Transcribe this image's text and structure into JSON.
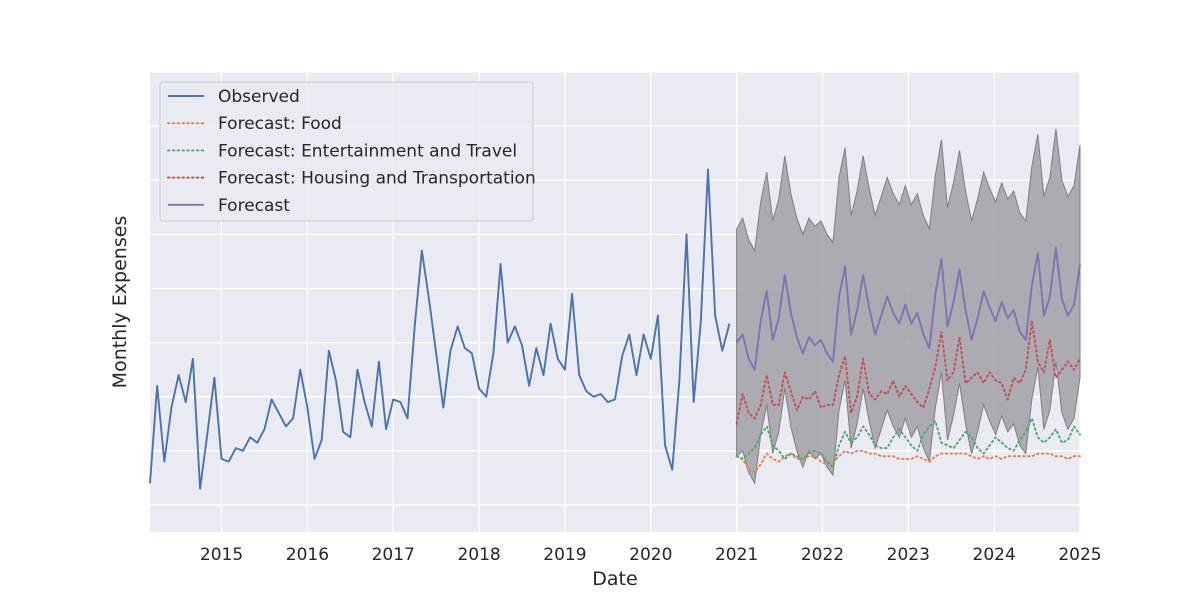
{
  "chart_data": {
    "type": "line",
    "title": "",
    "xlabel": "Date",
    "ylabel": "Monthly Expenses",
    "x_scale": "date",
    "x_ticks": [
      "2015",
      "2016",
      "2017",
      "2018",
      "2019",
      "2020",
      "2021",
      "2022",
      "2023",
      "2024",
      "2025"
    ],
    "xlim": [
      "2014-03",
      "2025-01"
    ],
    "ylim": [
      0,
      8.5
    ],
    "y_gridlines": [
      0.5,
      1.5,
      2.5,
      3.5,
      4.5,
      5.5,
      6.5,
      7.5,
      8.5
    ],
    "y_tick_labels_shown": false,
    "grid": true,
    "legend_position": "top-left",
    "colors": {
      "background": "#eaeaf2",
      "grid": "#ffffff",
      "observed": "#4c72b0",
      "food": "#dd8452",
      "entertainment": "#55a868",
      "housing": "#c44e52",
      "forecast": "#8172b3",
      "band": "#a0a0a6"
    },
    "legend": [
      {
        "label": "Observed",
        "series": "observed",
        "style": "solid"
      },
      {
        "label": "Forecast: Food",
        "series": "food",
        "style": "dotted"
      },
      {
        "label": "Forecast: Entertainment and Travel",
        "series": "entertainment",
        "style": "dotted"
      },
      {
        "label": "Forecast: Housing and Transportation",
        "series": "housing",
        "style": "dotted"
      },
      {
        "label": "Forecast",
        "series": "forecast",
        "style": "solid"
      }
    ],
    "observed": {
      "start": "2014-03",
      "values": [
        0.9,
        2.7,
        1.3,
        2.3,
        2.9,
        2.4,
        3.2,
        0.8,
        1.8,
        2.85,
        1.35,
        1.3,
        1.55,
        1.5,
        1.75,
        1.65,
        1.9,
        2.45,
        2.2,
        1.95,
        2.1,
        3.0,
        2.3,
        1.35,
        1.7,
        3.35,
        2.8,
        1.85,
        1.75,
        3.0,
        2.4,
        1.95,
        3.15,
        1.9,
        2.45,
        2.4,
        2.1,
        3.8,
        5.2,
        4.3,
        3.3,
        2.3,
        3.35,
        3.8,
        3.4,
        3.3,
        2.65,
        2.5,
        3.3,
        4.95,
        3.5,
        3.8,
        3.45,
        2.7,
        3.4,
        2.9,
        3.85,
        3.2,
        3.0,
        4.4,
        2.9,
        2.6,
        2.5,
        2.55,
        2.4,
        2.45,
        3.25,
        3.65,
        2.9,
        3.65,
        3.2,
        4.0,
        1.6,
        1.15,
        2.8,
        5.5,
        2.4,
        3.9,
        6.7,
        4.0,
        3.35,
        3.85
      ]
    },
    "forecast_period": {
      "start": "2021-01",
      "end": "2025-01"
    },
    "forecast": {
      "values": [
        3.5,
        3.65,
        3.2,
        3.0,
        3.9,
        4.45,
        3.55,
        3.95,
        4.75,
        4.05,
        3.6,
        3.3,
        3.6,
        3.45,
        3.55,
        3.3,
        3.15,
        4.35,
        4.9,
        3.65,
        4.1,
        4.75,
        4.15,
        3.65,
        4.0,
        4.35,
        4.05,
        3.85,
        4.2,
        3.85,
        4.05,
        3.65,
        3.4,
        4.4,
        5.05,
        3.8,
        4.25,
        4.85,
        4.1,
        3.55,
        3.95,
        4.45,
        4.15,
        3.9,
        4.25,
        3.95,
        4.1,
        3.7,
        3.55,
        4.55,
        5.15,
        4.0,
        4.35,
        5.25,
        4.3,
        4.0,
        4.2,
        4.95
      ]
    },
    "forecast_band": {
      "upper": [
        5.6,
        5.8,
        5.4,
        5.2,
        6.1,
        6.65,
        5.75,
        6.15,
        6.95,
        6.25,
        5.8,
        5.5,
        5.8,
        5.65,
        5.75,
        5.5,
        5.35,
        6.55,
        7.1,
        5.85,
        6.3,
        6.95,
        6.35,
        5.85,
        6.2,
        6.55,
        6.25,
        6.05,
        6.4,
        6.05,
        6.25,
        5.85,
        5.6,
        6.6,
        7.25,
        6.0,
        6.45,
        7.05,
        6.3,
        5.75,
        6.15,
        6.65,
        6.35,
        6.1,
        6.45,
        6.15,
        6.3,
        5.9,
        5.75,
        6.75,
        7.35,
        6.2,
        6.55,
        7.45,
        6.5,
        6.2,
        6.4,
        7.15
      ],
      "lower": [
        1.4,
        1.5,
        1.1,
        0.9,
        1.8,
        2.35,
        1.45,
        1.85,
        2.65,
        1.95,
        1.5,
        1.2,
        1.5,
        1.35,
        1.45,
        1.2,
        1.05,
        2.25,
        2.8,
        1.55,
        2.0,
        2.65,
        2.05,
        1.55,
        1.9,
        2.25,
        1.95,
        1.75,
        2.1,
        1.75,
        1.95,
        1.55,
        1.3,
        2.3,
        2.95,
        1.7,
        2.15,
        2.75,
        2.0,
        1.45,
        1.85,
        2.35,
        2.05,
        1.8,
        2.15,
        1.85,
        2.0,
        1.6,
        1.45,
        2.45,
        3.05,
        1.9,
        2.25,
        3.15,
        2.2,
        1.9,
        2.1,
        2.85
      ]
    },
    "forecast_food": {
      "values": [
        1.4,
        1.35,
        1.15,
        1.1,
        1.25,
        1.45,
        1.35,
        1.3,
        1.4,
        1.45,
        1.35,
        1.35,
        1.4,
        1.4,
        1.3,
        1.25,
        1.3,
        1.4,
        1.5,
        1.45,
        1.5,
        1.5,
        1.45,
        1.45,
        1.4,
        1.4,
        1.4,
        1.35,
        1.35,
        1.35,
        1.4,
        1.35,
        1.3,
        1.4,
        1.45,
        1.45,
        1.45,
        1.45,
        1.45,
        1.4,
        1.35,
        1.4,
        1.35,
        1.4,
        1.35,
        1.4,
        1.4,
        1.4,
        1.4,
        1.4,
        1.45,
        1.45,
        1.45,
        1.4,
        1.4,
        1.35,
        1.4,
        1.4
      ]
    },
    "forecast_entertainment": {
      "values": [
        1.4,
        1.35,
        1.45,
        1.55,
        1.8,
        1.95,
        1.6,
        1.5,
        1.35,
        1.45,
        1.4,
        1.35,
        1.45,
        1.5,
        1.45,
        1.3,
        1.2,
        1.6,
        1.85,
        1.65,
        1.75,
        1.95,
        1.8,
        1.6,
        1.55,
        1.55,
        1.75,
        1.9,
        1.75,
        1.6,
        1.5,
        1.8,
        1.95,
        2.05,
        1.65,
        1.6,
        1.55,
        1.7,
        1.85,
        1.75,
        1.55,
        1.45,
        1.6,
        1.75,
        1.65,
        1.55,
        1.5,
        1.7,
        1.85,
        2.1,
        1.75,
        1.65,
        1.75,
        1.9,
        1.65,
        1.7,
        1.95,
        1.8
      ]
    },
    "forecast_housing": {
      "values": [
        2.0,
        2.55,
        2.2,
        2.1,
        2.35,
        2.9,
        2.35,
        2.35,
        2.95,
        2.6,
        2.25,
        2.5,
        2.45,
        2.6,
        2.3,
        2.35,
        2.35,
        2.9,
        3.25,
        2.2,
        2.5,
        3.2,
        2.55,
        2.45,
        2.6,
        2.55,
        2.8,
        2.5,
        2.7,
        2.55,
        2.4,
        2.3,
        2.65,
        3.05,
        3.7,
        2.8,
        2.95,
        3.6,
        2.75,
        2.85,
        2.95,
        2.75,
        2.95,
        2.8,
        2.75,
        2.45,
        2.85,
        2.75,
        3.0,
        3.9,
        3.15,
        2.95,
        3.55,
        2.85,
        3.0,
        3.15,
        3.0,
        3.2
      ]
    }
  }
}
